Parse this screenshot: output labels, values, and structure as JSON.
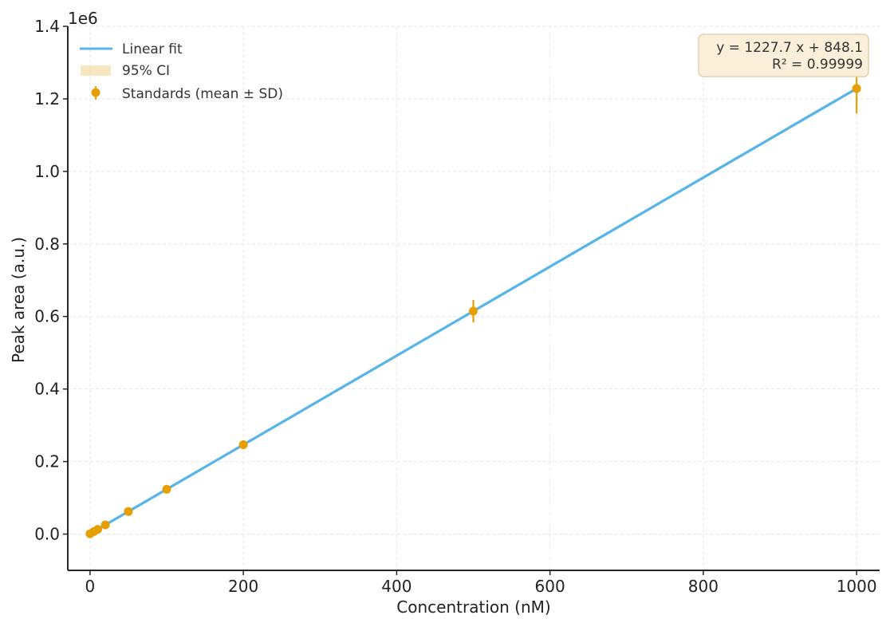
{
  "chart_data": {
    "type": "scatter",
    "title": "",
    "xlabel": "Concentration (nM)",
    "ylabel": "Peak area (a.u.)",
    "y_offset_label": "1e6",
    "xlim": [
      -29,
      1030
    ],
    "ylim": [
      -0.1,
      1.4
    ],
    "y_scale_factor": 1000000,
    "grid": true,
    "legend_position": "upper left",
    "x_ticks": [
      0,
      200,
      400,
      600,
      800,
      1000
    ],
    "x_tick_labels": [
      "0",
      "200",
      "400",
      "600",
      "800",
      "1000"
    ],
    "y_ticks": [
      0.0,
      0.2,
      0.4,
      0.6,
      0.8,
      1.0,
      1.2,
      1.4
    ],
    "y_tick_labels": [
      "0.0",
      "0.2",
      "0.4",
      "0.6",
      "0.8",
      "1.0",
      "1.2",
      "1.4"
    ],
    "series": [
      {
        "name": "Linear fit",
        "kind": "line",
        "color": "#56b4e9",
        "x": [
          0,
          1000
        ],
        "y": [
          0.000848,
          1.228548
        ]
      },
      {
        "name": "95% CI",
        "kind": "band",
        "color": "#f5d9a0"
      },
      {
        "name": "Standards (mean ± SD)",
        "kind": "errorbar",
        "color": "#e69f00",
        "x": [
          0,
          5,
          10,
          20,
          50,
          100,
          200,
          500,
          1000
        ],
        "y": [
          0.0008,
          0.007,
          0.0131,
          0.0254,
          0.0622,
          0.1236,
          0.2464,
          0.6147,
          1.2286
        ],
        "yerr": [
          0.0002,
          0.0005,
          0.0008,
          0.0015,
          0.003,
          0.006,
          0.012,
          0.031,
          0.069
        ]
      }
    ],
    "annotations": [
      {
        "text": "y = 1227.7 x + 848.1",
        "position": "upper right"
      },
      {
        "text": "R² = 0.99999",
        "position": "upper right"
      }
    ],
    "fit": {
      "slope": 1227.7,
      "intercept": 848.1,
      "r_squared": 0.99999
    }
  },
  "legend": {
    "items": [
      {
        "label": "Linear fit"
      },
      {
        "label": "95% CI"
      },
      {
        "label": "Standards (mean ± SD)"
      }
    ]
  },
  "annotation": {
    "line1": "y = 1227.7 x + 848.1",
    "line2": "R² = 0.99999"
  },
  "axes": {
    "xlabel": "Concentration (nM)",
    "ylabel": "Peak area (a.u.)",
    "offset": "1e6"
  }
}
